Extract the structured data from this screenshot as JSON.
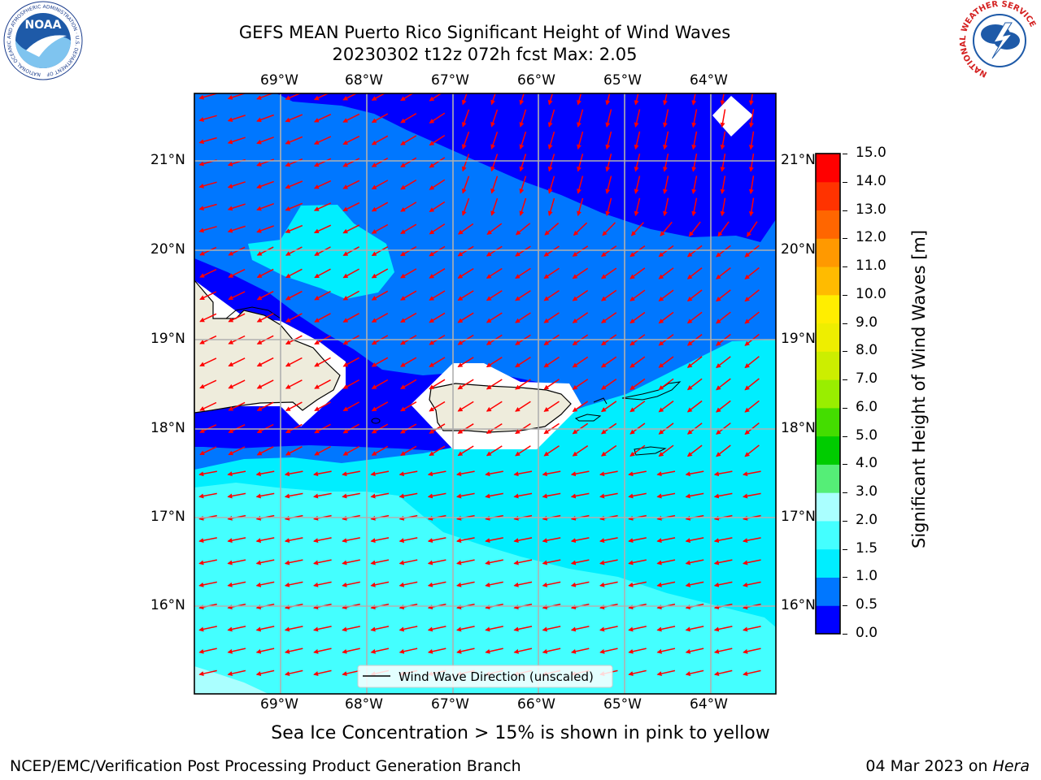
{
  "header": {
    "title_line1": "GEFS MEAN Puerto Rico Significant Height of Wind Waves",
    "title_line2": "20230302 t12z 072h fcst   Max: 2.05"
  },
  "logos": {
    "left": {
      "name": "noaa-logo",
      "text": "NOAA",
      "ring_text": "NATIONAL OCEANIC AND ATMOSPHERIC ADMINISTRATION · U.S. DEPARTMENT OF COMMERCE"
    },
    "right": {
      "name": "nws-logo",
      "ring_text": "NATIONAL WEATHER SERVICE"
    }
  },
  "map": {
    "lon_ticks": [
      "69°W",
      "68°W",
      "67°W",
      "66°W",
      "65°W",
      "64°W"
    ],
    "lat_ticks": [
      "21°N",
      "20°N",
      "19°N",
      "18°N",
      "17°N",
      "16°N"
    ],
    "legend_text": "Wind Wave Direction (unscaled)",
    "arrow_color": "#ff0000"
  },
  "colorbar": {
    "label": "Significant Height of Wind Waves [m]",
    "tick_labels": [
      "15.0",
      "14.0",
      "13.0",
      "12.0",
      "11.0",
      "10.0",
      "9.0",
      "8.0",
      "7.0",
      "6.0",
      "5.0",
      "4.0",
      "3.0",
      "2.0",
      "1.5",
      "1.0",
      "0.5",
      "0.0"
    ],
    "colors_bottom_to_top": [
      "#0000ff",
      "#0077ff",
      "#00eeff",
      "#44ffff",
      "#aaffff",
      "#55ee77",
      "#00cc00",
      "#44dd00",
      "#99ee00",
      "#ccee00",
      "#eeee00",
      "#ffee00",
      "#ffbb00",
      "#ff9900",
      "#ff6600",
      "#ff3300",
      "#ff0000"
    ]
  },
  "colors": {
    "fill_0_0.5": "#0000ff",
    "fill_0.5_1.0": "#0077ff",
    "fill_1.0_1.5": "#00eeff",
    "fill_1.5_2.0": "#44ffff",
    "fill_2.0_3.0": "#aaffff",
    "land": "#eeecdc",
    "grid": "#b0b0b0"
  },
  "footer": {
    "subtitle": "Sea Ice Concentration > 15% is shown in pink to yellow",
    "left": "NCEP/EMC/Verification Post Processing Product Generation Branch",
    "date": "04 Mar 2023 on ",
    "host": "Hera"
  }
}
